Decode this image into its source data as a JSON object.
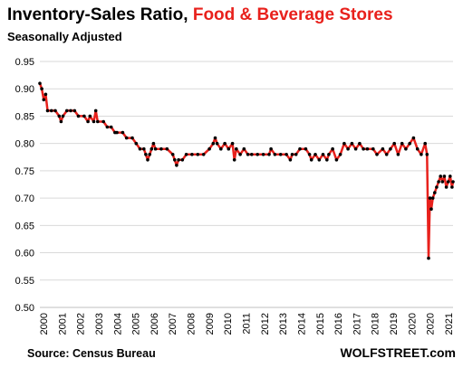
{
  "header": {
    "title_main": "Inventory-Sales Ratio,",
    "title_highlight": "Food & Beverage Stores",
    "subtitle": "Seasonally Adjusted"
  },
  "footer": {
    "source": "Source: Census Bureau",
    "brand": "WOLFSTREET.com"
  },
  "colors": {
    "line": "#e8211c",
    "markers": "#000000",
    "gridline": "#d9d9d9",
    "highlight_text": "#e8211c"
  },
  "chart_data": {
    "type": "line",
    "title": "Inventory-Sales Ratio, Food & Beverage Stores",
    "subtitle": "Seasonally Adjusted",
    "xlabel": "",
    "ylabel": "",
    "ylim": [
      0.5,
      0.95
    ],
    "xlim": [
      2000,
      2021.45
    ],
    "y_ticks": [
      "0.50",
      "0.55",
      "0.60",
      "0.65",
      "0.70",
      "0.75",
      "0.80",
      "0.85",
      "0.90",
      "0.95"
    ],
    "x_ticks": [
      "2000",
      "2001",
      "2002",
      "2003",
      "2004",
      "2005",
      "2006",
      "2007",
      "2008",
      "2009",
      "2010",
      "2011",
      "2012",
      "2013",
      "2014",
      "2015",
      "2016",
      "2017",
      "2018",
      "2019",
      "2020",
      "2020",
      "2021"
    ],
    "grid": "horizontal",
    "legend": "none",
    "series": [
      {
        "values": [
          [
            2000.0,
            0.91
          ],
          [
            2000.1,
            0.9
          ],
          [
            2000.2,
            0.88
          ],
          [
            2000.3,
            0.89
          ],
          [
            2000.4,
            0.86
          ],
          [
            2000.6,
            0.86
          ],
          [
            2000.8,
            0.86
          ],
          [
            2001.0,
            0.85
          ],
          [
            2001.1,
            0.84
          ],
          [
            2001.2,
            0.85
          ],
          [
            2001.4,
            0.86
          ],
          [
            2001.6,
            0.86
          ],
          [
            2001.8,
            0.86
          ],
          [
            2002.0,
            0.85
          ],
          [
            2002.3,
            0.85
          ],
          [
            2002.5,
            0.84
          ],
          [
            2002.6,
            0.85
          ],
          [
            2002.8,
            0.84
          ],
          [
            2002.9,
            0.86
          ],
          [
            2003.0,
            0.84
          ],
          [
            2003.3,
            0.84
          ],
          [
            2003.5,
            0.83
          ],
          [
            2003.7,
            0.83
          ],
          [
            2003.9,
            0.82
          ],
          [
            2004.0,
            0.82
          ],
          [
            2004.3,
            0.82
          ],
          [
            2004.5,
            0.81
          ],
          [
            2004.8,
            0.81
          ],
          [
            2005.0,
            0.8
          ],
          [
            2005.2,
            0.79
          ],
          [
            2005.4,
            0.79
          ],
          [
            2005.5,
            0.78
          ],
          [
            2005.6,
            0.77
          ],
          [
            2005.7,
            0.78
          ],
          [
            2005.8,
            0.79
          ],
          [
            2005.9,
            0.8
          ],
          [
            2006.0,
            0.79
          ],
          [
            2006.3,
            0.79
          ],
          [
            2006.6,
            0.79
          ],
          [
            2006.9,
            0.78
          ],
          [
            2007.0,
            0.77
          ],
          [
            2007.1,
            0.76
          ],
          [
            2007.2,
            0.77
          ],
          [
            2007.4,
            0.77
          ],
          [
            2007.6,
            0.78
          ],
          [
            2007.9,
            0.78
          ],
          [
            2008.2,
            0.78
          ],
          [
            2008.5,
            0.78
          ],
          [
            2008.8,
            0.79
          ],
          [
            2009.0,
            0.8
          ],
          [
            2009.1,
            0.81
          ],
          [
            2009.2,
            0.8
          ],
          [
            2009.4,
            0.79
          ],
          [
            2009.6,
            0.8
          ],
          [
            2009.8,
            0.79
          ],
          [
            2010.0,
            0.8
          ],
          [
            2010.1,
            0.77
          ],
          [
            2010.2,
            0.79
          ],
          [
            2010.4,
            0.78
          ],
          [
            2010.6,
            0.79
          ],
          [
            2010.8,
            0.78
          ],
          [
            2011.0,
            0.78
          ],
          [
            2011.3,
            0.78
          ],
          [
            2011.6,
            0.78
          ],
          [
            2011.9,
            0.78
          ],
          [
            2012.0,
            0.79
          ],
          [
            2012.2,
            0.78
          ],
          [
            2012.5,
            0.78
          ],
          [
            2012.8,
            0.78
          ],
          [
            2013.0,
            0.77
          ],
          [
            2013.1,
            0.78
          ],
          [
            2013.3,
            0.78
          ],
          [
            2013.5,
            0.79
          ],
          [
            2013.8,
            0.79
          ],
          [
            2014.0,
            0.78
          ],
          [
            2014.1,
            0.77
          ],
          [
            2014.3,
            0.78
          ],
          [
            2014.5,
            0.77
          ],
          [
            2014.7,
            0.78
          ],
          [
            2014.9,
            0.77
          ],
          [
            2015.0,
            0.78
          ],
          [
            2015.2,
            0.79
          ],
          [
            2015.4,
            0.77
          ],
          [
            2015.6,
            0.78
          ],
          [
            2015.8,
            0.8
          ],
          [
            2016.0,
            0.79
          ],
          [
            2016.2,
            0.8
          ],
          [
            2016.4,
            0.79
          ],
          [
            2016.6,
            0.8
          ],
          [
            2016.8,
            0.79
          ],
          [
            2017.0,
            0.79
          ],
          [
            2017.3,
            0.79
          ],
          [
            2017.5,
            0.78
          ],
          [
            2017.8,
            0.79
          ],
          [
            2018.0,
            0.78
          ],
          [
            2018.2,
            0.79
          ],
          [
            2018.4,
            0.8
          ],
          [
            2018.6,
            0.78
          ],
          [
            2018.8,
            0.8
          ],
          [
            2019.0,
            0.79
          ],
          [
            2019.2,
            0.8
          ],
          [
            2019.4,
            0.81
          ],
          [
            2019.6,
            0.79
          ],
          [
            2019.8,
            0.78
          ],
          [
            2020.0,
            0.8
          ],
          [
            2020.1,
            0.78
          ],
          [
            2020.18,
            0.59
          ],
          [
            2020.25,
            0.7
          ],
          [
            2020.32,
            0.68
          ],
          [
            2020.4,
            0.7
          ],
          [
            2020.5,
            0.71
          ],
          [
            2020.6,
            0.72
          ],
          [
            2020.7,
            0.73
          ],
          [
            2020.8,
            0.74
          ],
          [
            2020.9,
            0.73
          ],
          [
            2021.0,
            0.74
          ],
          [
            2021.1,
            0.72
          ],
          [
            2021.2,
            0.73
          ],
          [
            2021.3,
            0.74
          ],
          [
            2021.4,
            0.72
          ],
          [
            2021.45,
            0.73
          ]
        ]
      }
    ]
  }
}
